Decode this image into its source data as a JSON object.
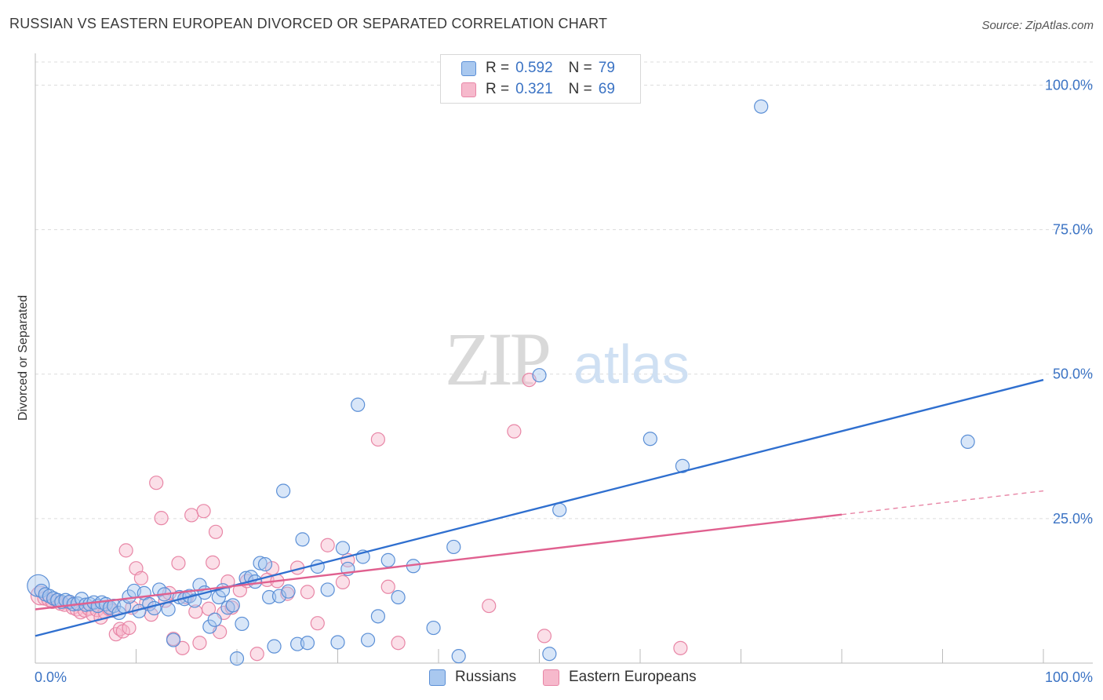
{
  "header": {
    "title": "RUSSIAN VS EASTERN EUROPEAN DIVORCED OR SEPARATED CORRELATION CHART",
    "source": "Source: ZipAtlas.com"
  },
  "legend": {
    "items": [
      {
        "r_label": "R =",
        "r_value": "0.592",
        "n_label": "N =",
        "n_value": "79"
      },
      {
        "r_label": "R =",
        "r_value": "0.321",
        "n_label": "N =",
        "n_value": "69"
      }
    ]
  },
  "bottom_legend": [
    "Russians",
    "Eastern Europeans"
  ],
  "watermark": {
    "zip": "ZIP",
    "atlas": "atlas"
  },
  "colors": {
    "russians_fill": "#a9c8ef",
    "russians_stroke": "#5b8fd6",
    "russians_line": "#2f6fcf",
    "eastern_fill": "#f6b9cc",
    "eastern_stroke": "#e886a6",
    "eastern_line": "#e0608f",
    "tick_label": "#3b73c4",
    "grid": "#dcdcdc"
  },
  "chart_data": {
    "type": "scatter",
    "title": "RUSSIAN VS EASTERN EUROPEAN DIVORCED OR SEPARATED CORRELATION CHART",
    "xlabel": "",
    "ylabel": "Divorced or Separated",
    "xlim": [
      0,
      100
    ],
    "ylim": [
      0,
      104
    ],
    "x_tick_labels": [
      "0.0%",
      "100.0%"
    ],
    "y_ticks": [
      25,
      50,
      75,
      100
    ],
    "y_tick_labels": [
      "25.0%",
      "50.0%",
      "75.0%",
      "100.0%"
    ],
    "grid": true,
    "series": [
      {
        "name": "Russians",
        "points": [
          [
            0.3,
            13.4
          ],
          [
            0.6,
            12.5
          ],
          [
            1.0,
            11.9
          ],
          [
            1.4,
            11.6
          ],
          [
            1.8,
            11.2
          ],
          [
            2.2,
            10.9
          ],
          [
            2.6,
            10.6
          ],
          [
            3.0,
            10.9
          ],
          [
            3.4,
            10.6
          ],
          [
            3.8,
            10.2
          ],
          [
            4.2,
            10.3
          ],
          [
            4.6,
            11.1
          ],
          [
            5.0,
            10.1
          ],
          [
            5.4,
            10.2
          ],
          [
            5.8,
            10.5
          ],
          [
            6.2,
            9.9
          ],
          [
            6.6,
            10.5
          ],
          [
            7.0,
            10.2
          ],
          [
            7.4,
            9.6
          ],
          [
            7.8,
            9.9
          ],
          [
            8.3,
            8.7
          ],
          [
            8.8,
            9.8
          ],
          [
            9.3,
            11.5
          ],
          [
            9.8,
            12.5
          ],
          [
            10.3,
            9.0
          ],
          [
            10.8,
            12.1
          ],
          [
            11.3,
            10.2
          ],
          [
            11.8,
            9.5
          ],
          [
            12.3,
            12.7
          ],
          [
            12.8,
            11.9
          ],
          [
            13.2,
            9.3
          ],
          [
            13.7,
            4.0
          ],
          [
            14.3,
            11.4
          ],
          [
            14.8,
            11.1
          ],
          [
            15.3,
            11.6
          ],
          [
            15.8,
            10.8
          ],
          [
            16.3,
            13.5
          ],
          [
            16.8,
            12.2
          ],
          [
            17.3,
            6.3
          ],
          [
            17.8,
            7.5
          ],
          [
            18.2,
            11.4
          ],
          [
            18.6,
            12.6
          ],
          [
            19.1,
            9.6
          ],
          [
            19.6,
            10.0
          ],
          [
            20.0,
            0.8
          ],
          [
            20.5,
            6.8
          ],
          [
            20.9,
            14.7
          ],
          [
            21.4,
            14.9
          ],
          [
            21.8,
            14.1
          ],
          [
            22.3,
            17.3
          ],
          [
            22.8,
            17.1
          ],
          [
            23.2,
            11.4
          ],
          [
            23.7,
            2.9
          ],
          [
            24.2,
            11.6
          ],
          [
            24.6,
            29.8
          ],
          [
            25.1,
            12.4
          ],
          [
            26.0,
            3.3
          ],
          [
            26.5,
            21.4
          ],
          [
            27.0,
            3.5
          ],
          [
            28.0,
            16.7
          ],
          [
            29.0,
            12.7
          ],
          [
            30.0,
            3.6
          ],
          [
            30.5,
            19.9
          ],
          [
            31.0,
            16.3
          ],
          [
            32.0,
            44.7
          ],
          [
            32.5,
            18.4
          ],
          [
            33.0,
            4.0
          ],
          [
            34.0,
            8.1
          ],
          [
            35.0,
            17.8
          ],
          [
            36.0,
            11.4
          ],
          [
            37.5,
            16.8
          ],
          [
            39.5,
            6.1
          ],
          [
            41.5,
            20.1
          ],
          [
            42.0,
            1.2
          ],
          [
            50.0,
            49.8
          ],
          [
            51.0,
            1.6
          ],
          [
            52.0,
            26.5
          ],
          [
            61.0,
            38.8
          ],
          [
            64.2,
            34.1
          ],
          [
            72.0,
            96.3
          ],
          [
            92.5,
            38.3
          ]
        ],
        "trend": {
          "x": [
            0,
            100
          ],
          "y": [
            4.7,
            49.0
          ]
        }
      },
      {
        "name": "Eastern Europeans",
        "points": [
          [
            0.5,
            11.7
          ],
          [
            0.9,
            11.2
          ],
          [
            1.3,
            11.0
          ],
          [
            1.7,
            10.6
          ],
          [
            2.1,
            10.9
          ],
          [
            2.5,
            10.3
          ],
          [
            2.9,
            10.1
          ],
          [
            3.3,
            10.5
          ],
          [
            3.7,
            9.6
          ],
          [
            4.1,
            9.3
          ],
          [
            4.5,
            8.8
          ],
          [
            4.9,
            9.1
          ],
          [
            5.3,
            9.4
          ],
          [
            5.7,
            8.4
          ],
          [
            6.1,
            9.2
          ],
          [
            6.5,
            7.9
          ],
          [
            6.9,
            8.8
          ],
          [
            7.3,
            9.4
          ],
          [
            7.7,
            9.1
          ],
          [
            8.0,
            5.0
          ],
          [
            8.4,
            5.9
          ],
          [
            8.7,
            5.5
          ],
          [
            9.0,
            19.5
          ],
          [
            9.3,
            6.1
          ],
          [
            9.6,
            9.6
          ],
          [
            10.0,
            16.4
          ],
          [
            10.5,
            14.7
          ],
          [
            11.0,
            10.4
          ],
          [
            11.5,
            8.4
          ],
          [
            12.0,
            31.2
          ],
          [
            12.5,
            25.1
          ],
          [
            12.9,
            10.8
          ],
          [
            13.3,
            12.1
          ],
          [
            13.7,
            4.2
          ],
          [
            14.2,
            17.3
          ],
          [
            14.6,
            2.6
          ],
          [
            15.0,
            11.4
          ],
          [
            15.5,
            25.6
          ],
          [
            15.9,
            8.9
          ],
          [
            16.3,
            3.5
          ],
          [
            16.7,
            26.3
          ],
          [
            17.2,
            9.4
          ],
          [
            17.6,
            17.4
          ],
          [
            17.9,
            22.7
          ],
          [
            18.3,
            5.4
          ],
          [
            18.7,
            8.7
          ],
          [
            19.1,
            14.1
          ],
          [
            19.5,
            9.6
          ],
          [
            20.3,
            12.6
          ],
          [
            21.0,
            14.2
          ],
          [
            22.0,
            1.6
          ],
          [
            23.0,
            14.4
          ],
          [
            23.5,
            16.4
          ],
          [
            24.0,
            14.2
          ],
          [
            25.0,
            12.0
          ],
          [
            26.0,
            16.5
          ],
          [
            27.0,
            12.3
          ],
          [
            28.0,
            6.9
          ],
          [
            29.0,
            20.4
          ],
          [
            30.5,
            14.0
          ],
          [
            31.0,
            17.8
          ],
          [
            34.0,
            38.7
          ],
          [
            35.0,
            13.2
          ],
          [
            36.0,
            3.5
          ],
          [
            45.0,
            9.9
          ],
          [
            47.5,
            40.1
          ],
          [
            49.0,
            49.0
          ],
          [
            50.5,
            4.7
          ],
          [
            64.0,
            2.6
          ]
        ],
        "trend": {
          "x": [
            0,
            80
          ],
          "y": [
            9.3,
            25.7
          ]
        },
        "trend_dashed": {
          "x": [
            80,
            100
          ],
          "y": [
            25.7,
            29.8
          ]
        }
      }
    ]
  }
}
